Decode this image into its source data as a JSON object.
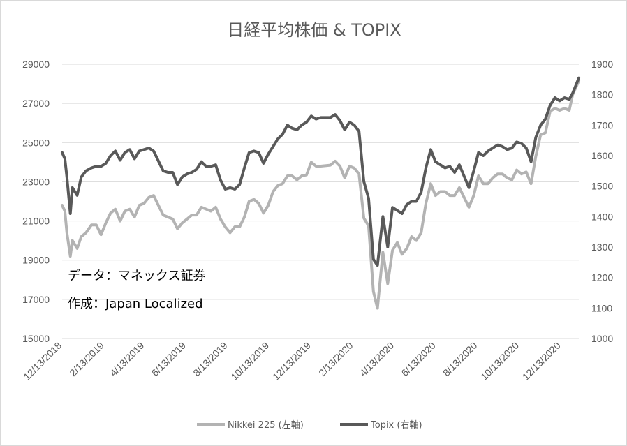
{
  "chart_data": {
    "type": "line",
    "title": "日経平均株価 & TOPIX",
    "x_ticks": [
      "12/13/2018",
      "2/13/2019",
      "4/13/2019",
      "6/13/2019",
      "8/13/2019",
      "10/13/2019",
      "12/13/2019",
      "2/13/2020",
      "4/13/2020",
      "6/13/2020",
      "8/13/2020",
      "10/13/2020",
      "12/13/2020"
    ],
    "x_range": [
      "12/13/2018",
      "1/8/2021"
    ],
    "y_left": {
      "ticks": [
        "15000",
        "17000",
        "19000",
        "21000",
        "23000",
        "25000",
        "27000",
        "29000"
      ],
      "range": [
        15000,
        29000
      ]
    },
    "y_right": {
      "ticks": [
        "1000",
        "1100",
        "1200",
        "1300",
        "1400",
        "1500",
        "1600",
        "1700",
        "1800",
        "1900"
      ],
      "range": [
        1000,
        1900
      ]
    },
    "grid": true,
    "legend_position": "bottom",
    "annotations": [
      "データ：マネックス証券",
      "作成：Japan Localized"
    ],
    "series": [
      {
        "name": "Nikkei 225 (左軸)",
        "axis": "left",
        "color": "#b3b3b3",
        "points": [
          [
            "12/13/2018",
            21800
          ],
          [
            "12/17/2018",
            21500
          ],
          [
            "12/20/2018",
            20400
          ],
          [
            "12/25/2018",
            19200
          ],
          [
            "12/28/2018",
            20000
          ],
          [
            "1/4/2019",
            19600
          ],
          [
            "1/10/2019",
            20200
          ],
          [
            "1/17/2019",
            20400
          ],
          [
            "1/25/2019",
            20800
          ],
          [
            "2/1/2019",
            20800
          ],
          [
            "2/8/2019",
            20300
          ],
          [
            "2/15/2019",
            20900
          ],
          [
            "2/22/2019",
            21400
          ],
          [
            "3/1/2019",
            21600
          ],
          [
            "3/8/2019",
            21000
          ],
          [
            "3/15/2019",
            21500
          ],
          [
            "3/22/2019",
            21600
          ],
          [
            "3/29/2019",
            21200
          ],
          [
            "4/5/2019",
            21800
          ],
          [
            "4/12/2019",
            21900
          ],
          [
            "4/19/2019",
            22200
          ],
          [
            "4/26/2019",
            22300
          ],
          [
            "5/10/2019",
            21300
          ],
          [
            "5/17/2019",
            21200
          ],
          [
            "5/24/2019",
            21100
          ],
          [
            "5/31/2019",
            20600
          ],
          [
            "6/7/2019",
            20900
          ],
          [
            "6/14/2019",
            21100
          ],
          [
            "6/21/2019",
            21300
          ],
          [
            "6/28/2019",
            21300
          ],
          [
            "7/5/2019",
            21700
          ],
          [
            "7/12/2019",
            21600
          ],
          [
            "7/19/2019",
            21500
          ],
          [
            "7/26/2019",
            21700
          ],
          [
            "8/2/2019",
            21100
          ],
          [
            "8/9/2019",
            20700
          ],
          [
            "8/16/2019",
            20400
          ],
          [
            "8/23/2019",
            20700
          ],
          [
            "8/30/2019",
            20700
          ],
          [
            "9/6/2019",
            21200
          ],
          [
            "9/13/2019",
            22000
          ],
          [
            "9/20/2019",
            22100
          ],
          [
            "9/27/2019",
            21900
          ],
          [
            "10/4/2019",
            21400
          ],
          [
            "10/11/2019",
            21800
          ],
          [
            "10/18/2019",
            22500
          ],
          [
            "10/25/2019",
            22800
          ],
          [
            "11/1/2019",
            22900
          ],
          [
            "11/8/2019",
            23300
          ],
          [
            "11/15/2019",
            23300
          ],
          [
            "11/22/2019",
            23100
          ],
          [
            "11/29/2019",
            23300
          ],
          [
            "12/6/2019",
            23350
          ],
          [
            "12/13/2019",
            24000
          ],
          [
            "12/20/2019",
            23800
          ],
          [
            "12/27/2019",
            23800
          ],
          [
            "1/10/2020",
            23850
          ],
          [
            "1/17/2020",
            24050
          ],
          [
            "1/24/2020",
            23800
          ],
          [
            "1/31/2020",
            23200
          ],
          [
            "2/7/2020",
            23800
          ],
          [
            "2/14/2020",
            23700
          ],
          [
            "2/21/2020",
            23400
          ],
          [
            "2/28/2020",
            21150
          ],
          [
            "3/6/2020",
            20750
          ],
          [
            "3/13/2020",
            17400
          ],
          [
            "3/19/2020",
            16550
          ],
          [
            "3/27/2020",
            19400
          ],
          [
            "4/3/2020",
            17800
          ],
          [
            "4/10/2020",
            19500
          ],
          [
            "4/17/2020",
            19900
          ],
          [
            "4/24/2020",
            19300
          ],
          [
            "5/1/2020",
            19600
          ],
          [
            "5/8/2020",
            20200
          ],
          [
            "5/15/2020",
            20000
          ],
          [
            "5/22/2020",
            20400
          ],
          [
            "5/29/2020",
            21900
          ],
          [
            "6/5/2020",
            22900
          ],
          [
            "6/12/2020",
            22300
          ],
          [
            "6/19/2020",
            22500
          ],
          [
            "6/26/2020",
            22500
          ],
          [
            "7/3/2020",
            22300
          ],
          [
            "7/10/2020",
            22300
          ],
          [
            "7/17/2020",
            22700
          ],
          [
            "7/31/2020",
            21700
          ],
          [
            "8/7/2020",
            22300
          ],
          [
            "8/14/2020",
            23300
          ],
          [
            "8/21/2020",
            22900
          ],
          [
            "8/28/2020",
            22900
          ],
          [
            "9/4/2020",
            23200
          ],
          [
            "9/11/2020",
            23400
          ],
          [
            "9/18/2020",
            23400
          ],
          [
            "9/25/2020",
            23200
          ],
          [
            "10/2/2020",
            23100
          ],
          [
            "10/9/2020",
            23600
          ],
          [
            "10/16/2020",
            23400
          ],
          [
            "10/23/2020",
            23500
          ],
          [
            "10/30/2020",
            22900
          ],
          [
            "11/6/2020",
            24300
          ],
          [
            "11/13/2020",
            25400
          ],
          [
            "11/20/2020",
            25500
          ],
          [
            "11/27/2020",
            26600
          ],
          [
            "12/4/2020",
            26750
          ],
          [
            "12/11/2020",
            26650
          ],
          [
            "12/18/2020",
            26750
          ],
          [
            "12/25/2020",
            26650
          ],
          [
            "12/30/2020",
            27450
          ],
          [
            "1/8/2021",
            28150
          ]
        ]
      },
      {
        "name": "Topix (右軸)",
        "axis": "right",
        "color": "#595959",
        "points": [
          [
            "12/13/2018",
            1610
          ],
          [
            "12/17/2018",
            1590
          ],
          [
            "12/20/2018",
            1530
          ],
          [
            "12/25/2018",
            1410
          ],
          [
            "12/28/2018",
            1495
          ],
          [
            "1/4/2019",
            1470
          ],
          [
            "1/10/2019",
            1530
          ],
          [
            "1/17/2019",
            1550
          ],
          [
            "1/25/2019",
            1560
          ],
          [
            "2/1/2019",
            1565
          ],
          [
            "2/8/2019",
            1565
          ],
          [
            "2/15/2019",
            1575
          ],
          [
            "2/22/2019",
            1600
          ],
          [
            "3/1/2019",
            1615
          ],
          [
            "3/8/2019",
            1585
          ],
          [
            "3/15/2019",
            1610
          ],
          [
            "3/22/2019",
            1620
          ],
          [
            "3/29/2019",
            1590
          ],
          [
            "4/5/2019",
            1615
          ],
          [
            "4/12/2019",
            1620
          ],
          [
            "4/19/2019",
            1625
          ],
          [
            "4/26/2019",
            1615
          ],
          [
            "5/10/2019",
            1550
          ],
          [
            "5/17/2019",
            1545
          ],
          [
            "5/24/2019",
            1545
          ],
          [
            "5/31/2019",
            1505
          ],
          [
            "6/7/2019",
            1530
          ],
          [
            "6/14/2019",
            1540
          ],
          [
            "6/21/2019",
            1545
          ],
          [
            "6/28/2019",
            1555
          ],
          [
            "7/5/2019",
            1580
          ],
          [
            "7/12/2019",
            1565
          ],
          [
            "7/19/2019",
            1565
          ],
          [
            "7/26/2019",
            1570
          ],
          [
            "8/2/2019",
            1520
          ],
          [
            "8/9/2019",
            1490
          ],
          [
            "8/16/2019",
            1495
          ],
          [
            "8/23/2019",
            1490
          ],
          [
            "8/30/2019",
            1505
          ],
          [
            "9/6/2019",
            1560
          ],
          [
            "9/13/2019",
            1610
          ],
          [
            "9/20/2019",
            1615
          ],
          [
            "9/27/2019",
            1610
          ],
          [
            "10/4/2019",
            1575
          ],
          [
            "10/11/2019",
            1605
          ],
          [
            "10/18/2019",
            1630
          ],
          [
            "10/25/2019",
            1655
          ],
          [
            "11/1/2019",
            1670
          ],
          [
            "11/8/2019",
            1700
          ],
          [
            "11/15/2019",
            1690
          ],
          [
            "11/22/2019",
            1685
          ],
          [
            "11/29/2019",
            1700
          ],
          [
            "12/6/2019",
            1710
          ],
          [
            "12/13/2019",
            1730
          ],
          [
            "12/20/2019",
            1720
          ],
          [
            "12/27/2019",
            1725
          ],
          [
            "1/10/2020",
            1725
          ],
          [
            "1/17/2020",
            1735
          ],
          [
            "1/24/2020",
            1715
          ],
          [
            "1/31/2020",
            1685
          ],
          [
            "2/7/2020",
            1710
          ],
          [
            "2/14/2020",
            1700
          ],
          [
            "2/21/2020",
            1680
          ],
          [
            "2/28/2020",
            1515
          ],
          [
            "3/6/2020",
            1460
          ],
          [
            "3/13/2020",
            1260
          ],
          [
            "3/19/2020",
            1240
          ],
          [
            "3/27/2020",
            1400
          ],
          [
            "4/3/2020",
            1300
          ],
          [
            "4/10/2020",
            1430
          ],
          [
            "4/17/2020",
            1420
          ],
          [
            "4/24/2020",
            1410
          ],
          [
            "5/1/2020",
            1440
          ],
          [
            "5/8/2020",
            1450
          ],
          [
            "5/15/2020",
            1450
          ],
          [
            "5/22/2020",
            1480
          ],
          [
            "5/29/2020",
            1560
          ],
          [
            "6/5/2020",
            1620
          ],
          [
            "6/12/2020",
            1580
          ],
          [
            "6/19/2020",
            1570
          ],
          [
            "6/26/2020",
            1560
          ],
          [
            "7/3/2020",
            1565
          ],
          [
            "7/10/2020",
            1545
          ],
          [
            "7/17/2020",
            1570
          ],
          [
            "7/31/2020",
            1495
          ],
          [
            "8/7/2020",
            1550
          ],
          [
            "8/14/2020",
            1610
          ],
          [
            "8/21/2020",
            1600
          ],
          [
            "8/28/2020",
            1615
          ],
          [
            "9/4/2020",
            1625
          ],
          [
            "9/11/2020",
            1635
          ],
          [
            "9/18/2020",
            1630
          ],
          [
            "9/25/2020",
            1620
          ],
          [
            "10/2/2020",
            1625
          ],
          [
            "10/9/2020",
            1645
          ],
          [
            "10/16/2020",
            1640
          ],
          [
            "10/23/2020",
            1625
          ],
          [
            "10/30/2020",
            1580
          ],
          [
            "11/6/2020",
            1660
          ],
          [
            "11/13/2020",
            1700
          ],
          [
            "11/20/2020",
            1720
          ],
          [
            "11/27/2020",
            1765
          ],
          [
            "12/4/2020",
            1790
          ],
          [
            "12/11/2020",
            1780
          ],
          [
            "12/18/2020",
            1790
          ],
          [
            "12/25/2020",
            1785
          ],
          [
            "12/30/2020",
            1805
          ],
          [
            "1/8/2021",
            1855
          ]
        ]
      }
    ]
  }
}
